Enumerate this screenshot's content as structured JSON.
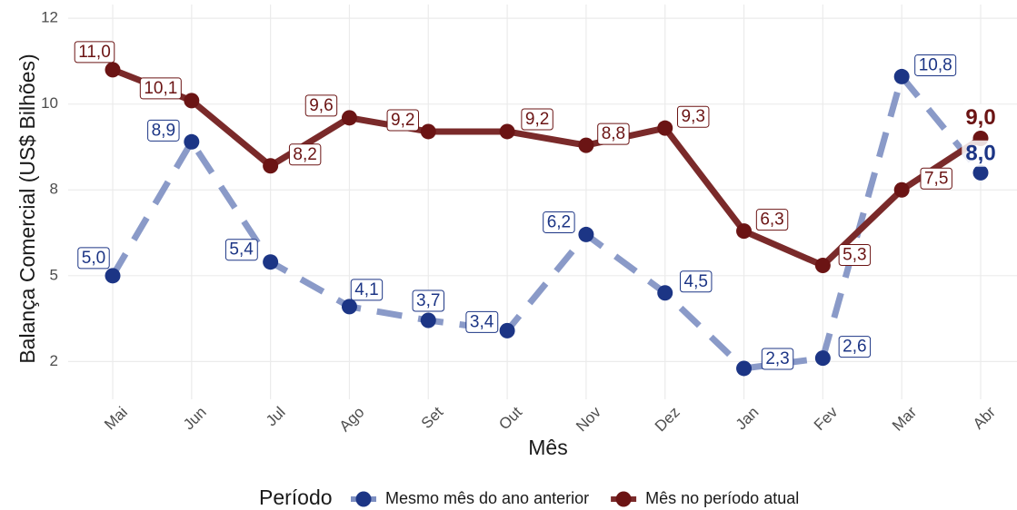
{
  "chart_data": {
    "type": "line",
    "x_label": "Mês",
    "y_label": "Balança Comercial (US$ Bilhões)",
    "legend_title": "Período",
    "categories": [
      "Mai",
      "Jun",
      "Jul",
      "Ago",
      "Set",
      "Out",
      "Nov",
      "Dez",
      "Jan",
      "Fev",
      "Mar",
      "Abr"
    ],
    "series": [
      {
        "name": "Mesmo mês do ano anterior",
        "color": "#1c3585",
        "line_color": "#7d8fc2",
        "dashed": true,
        "values": [
          5.0,
          8.9,
          5.4,
          4.1,
          3.7,
          3.4,
          6.2,
          4.5,
          2.3,
          2.6,
          10.8,
          8.0
        ],
        "value_labels": [
          "5,0",
          "8,9",
          "5,4",
          "4,1",
          "3,7",
          "3,4",
          "6,2",
          "4,5",
          "2,3",
          "2,6",
          "10,8",
          "8,0"
        ]
      },
      {
        "name": "Mês no período atual",
        "color": "#6b1414",
        "line_color": "#7a2a2a",
        "dashed": false,
        "values": [
          11.0,
          10.1,
          8.2,
          9.6,
          9.2,
          9.2,
          8.8,
          9.3,
          6.3,
          5.3,
          7.5,
          9.0
        ],
        "value_labels": [
          "11,0",
          "10,1",
          "8,2",
          "9,6",
          "9,2",
          "9,2",
          "8,8",
          "9,3",
          "6,3",
          "5,3",
          "7,5",
          "9,0"
        ]
      }
    ],
    "ylim": [
      1.4,
      12.9
    ],
    "yticks": [
      {
        "value": 2.5,
        "label": "2"
      },
      {
        "value": 5,
        "label": "5"
      },
      {
        "value": 7.5,
        "label": "8"
      },
      {
        "value": 10,
        "label": "10"
      },
      {
        "value": 12.5,
        "label": "12"
      }
    ],
    "grid": true
  }
}
